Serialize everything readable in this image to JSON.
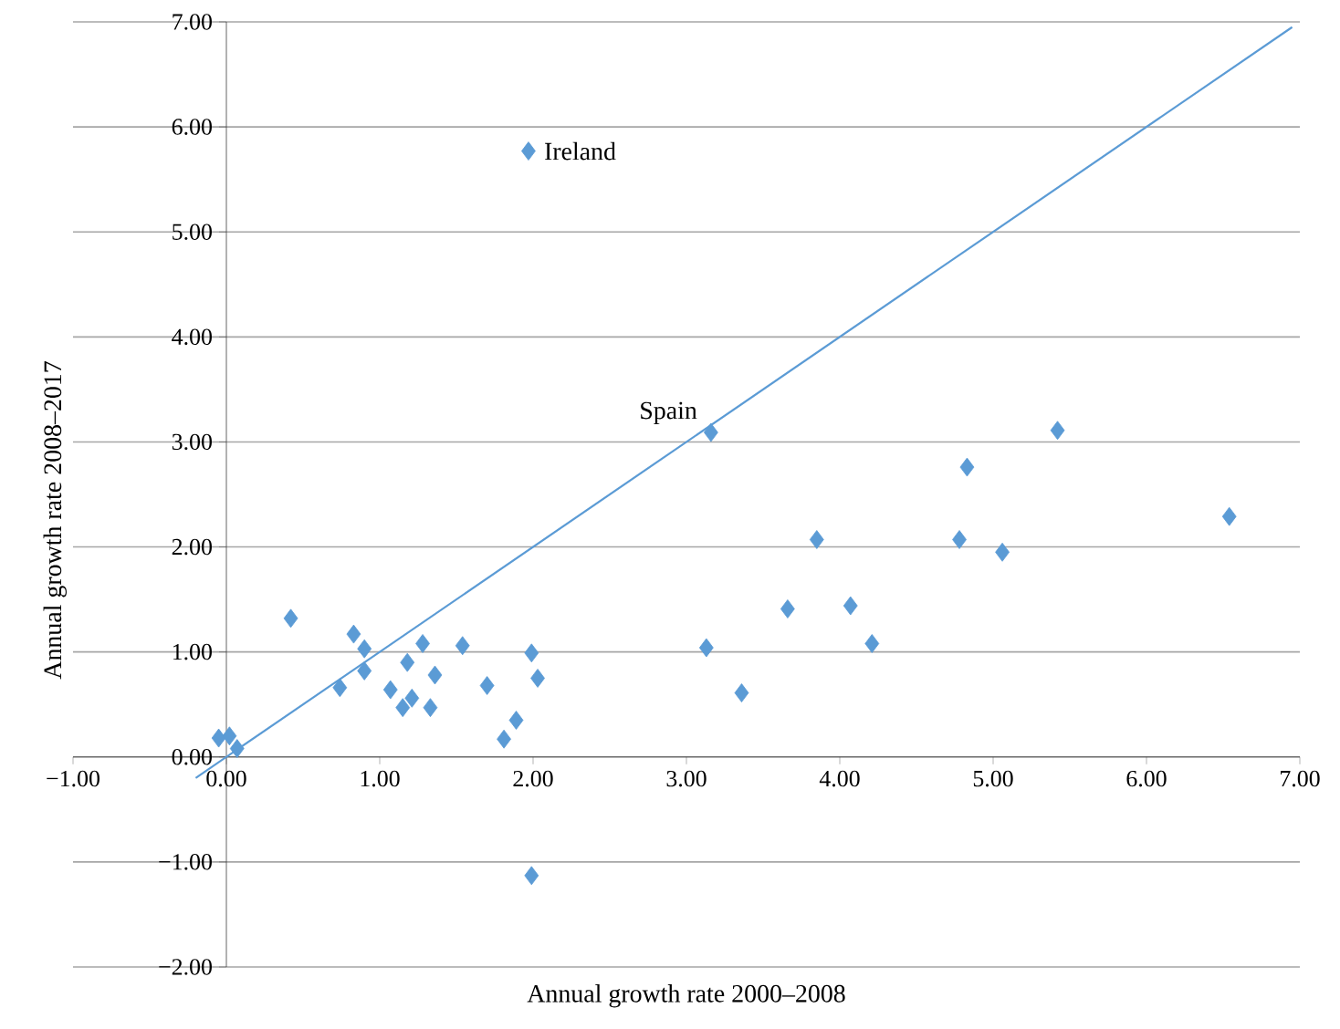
{
  "chart_data": {
    "type": "scatter",
    "xlabel": "Annual growth rate 2000–2008",
    "ylabel": "Annual growth rate 2008–2017",
    "xlim": [
      -1,
      7
    ],
    "ylim": [
      -2,
      7
    ],
    "xticks": [
      {
        "value": -1,
        "label": "−1.00"
      },
      {
        "value": 0,
        "label": "0.00"
      },
      {
        "value": 1,
        "label": "1.00"
      },
      {
        "value": 2,
        "label": "2.00"
      },
      {
        "value": 3,
        "label": "3.00"
      },
      {
        "value": 4,
        "label": "4.00"
      },
      {
        "value": 5,
        "label": "5.00"
      },
      {
        "value": 6,
        "label": "6.00"
      },
      {
        "value": 7,
        "label": "7.00"
      }
    ],
    "yticks": [
      {
        "value": -2,
        "label": "−2.00"
      },
      {
        "value": -1,
        "label": "−1.00"
      },
      {
        "value": 0,
        "label": "0.00"
      },
      {
        "value": 1,
        "label": "1.00"
      },
      {
        "value": 2,
        "label": "2.00"
      },
      {
        "value": 3,
        "label": "3.00"
      },
      {
        "value": 4,
        "label": "4.00"
      },
      {
        "value": 5,
        "label": "5.00"
      },
      {
        "value": 6,
        "label": "6.00"
      },
      {
        "value": 7,
        "label": "7.00"
      }
    ],
    "grid": "y",
    "marker": "diamond",
    "series": [
      {
        "color": "#5b9bd5",
        "x": [
          -0.05,
          0.02,
          0.07,
          0.42,
          0.83,
          0.9,
          0.9,
          0.74,
          1.07,
          1.18,
          1.28,
          1.15,
          1.33,
          1.21,
          1.36,
          1.54,
          1.7,
          1.99,
          2.03,
          1.89,
          1.81,
          1.99,
          1.97,
          3.16,
          5.42,
          4.83,
          6.54,
          3.85,
          4.78,
          5.06,
          3.66,
          4.07,
          4.21,
          3.13,
          3.36
        ],
        "values": [
          0.18,
          0.2,
          0.08,
          1.32,
          1.17,
          1.03,
          0.82,
          0.66,
          0.64,
          0.9,
          1.08,
          0.47,
          0.47,
          0.56,
          0.78,
          1.06,
          0.68,
          0.99,
          0.75,
          0.35,
          0.17,
          -1.13,
          5.77,
          3.09,
          3.11,
          2.76,
          2.29,
          2.07,
          2.07,
          1.95,
          1.41,
          1.44,
          1.08,
          1.04,
          0.61
        ]
      },
      {
        "type": "line",
        "color": "#5b9bd5",
        "marker": "none",
        "x": [
          -0.2,
          6.95
        ],
        "values": [
          -0.2,
          6.95
        ]
      }
    ],
    "annotations": [
      {
        "text": "Ireland",
        "x": 1.97,
        "y": 5.77
      },
      {
        "text": "Spain",
        "x": 3.16,
        "y": 3.09
      }
    ]
  }
}
